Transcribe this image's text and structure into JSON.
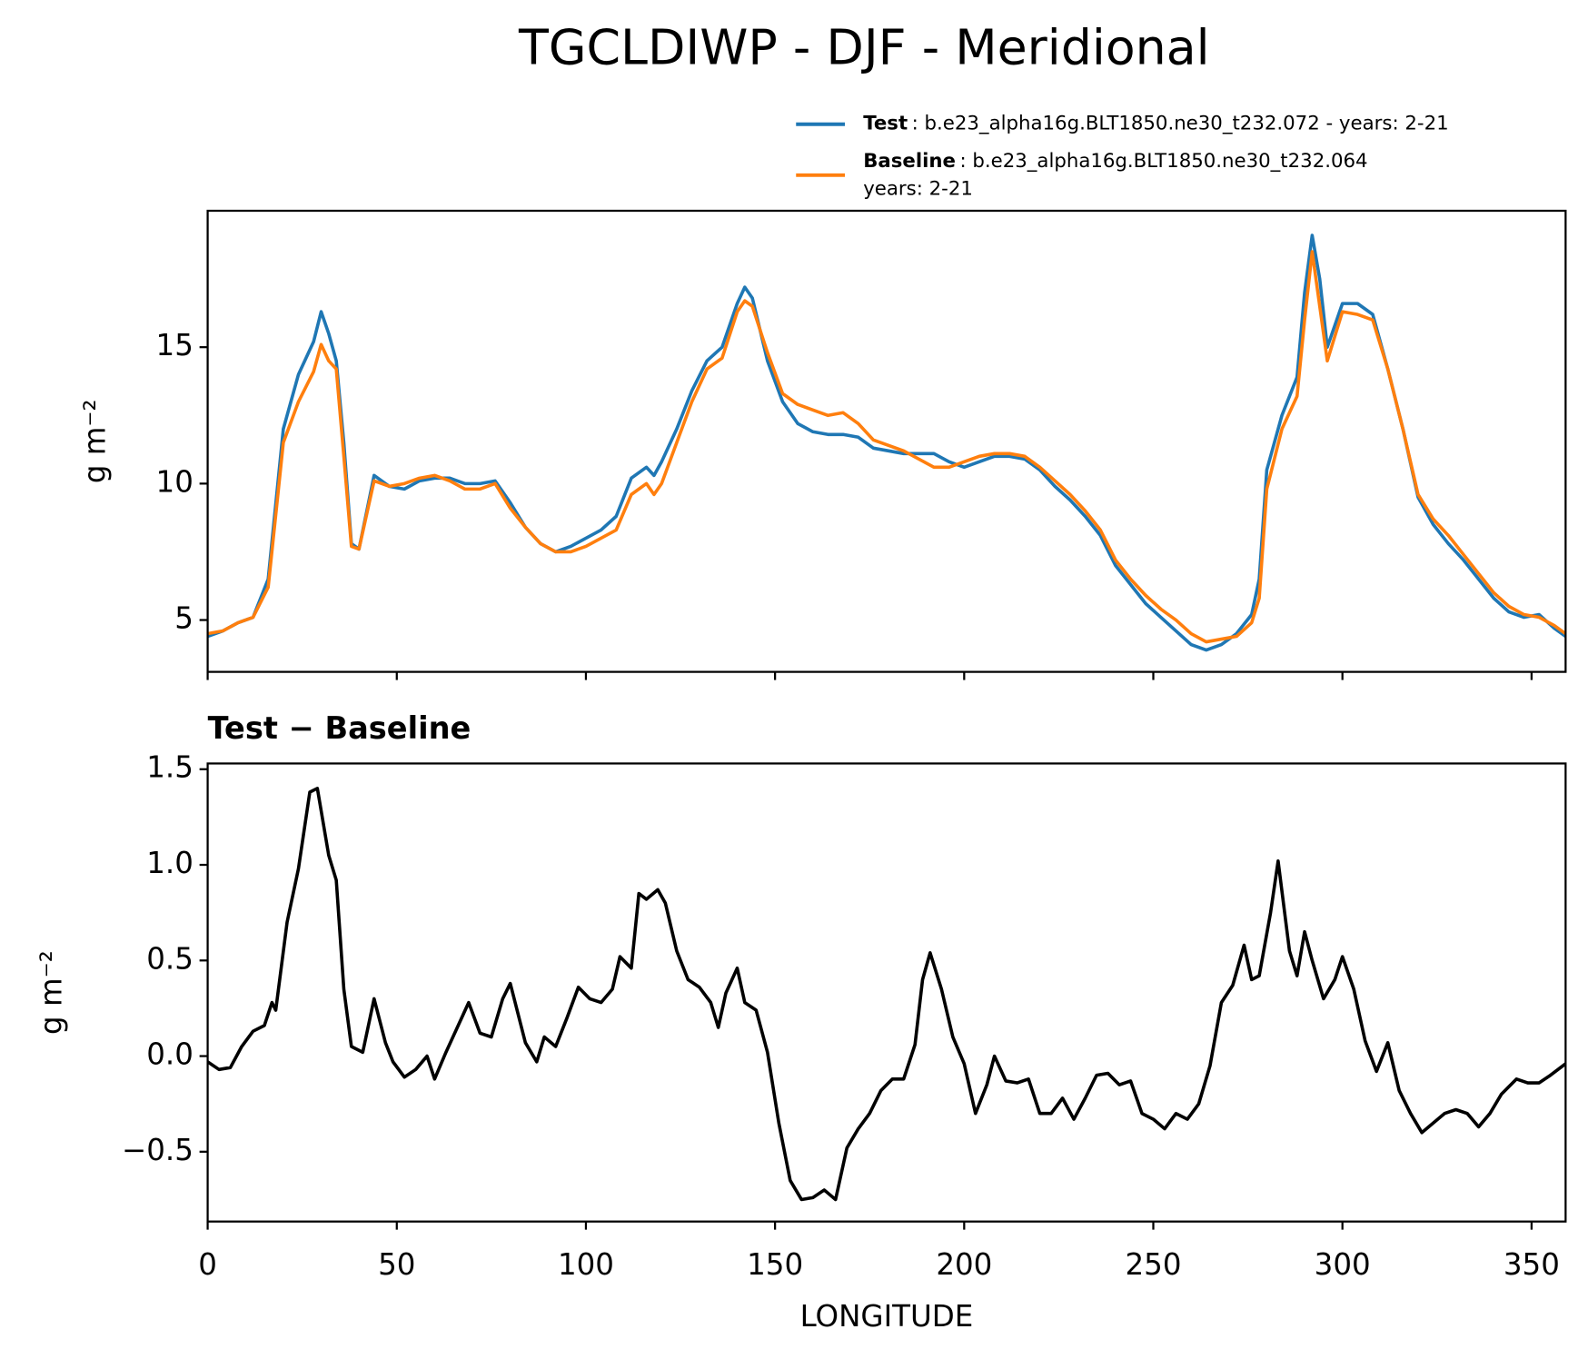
{
  "chart_data": [
    {
      "type": "line",
      "title": "TGCLDIWP - DJF - Meridional",
      "ylabel": "g m⁻²",
      "legend": "upper right",
      "xlim": [
        0,
        359
      ],
      "ylim": [
        3.1,
        20.0
      ],
      "xticks": [
        0,
        50,
        100,
        150,
        200,
        250,
        300,
        350
      ],
      "xtick_labels": false,
      "yticks": [
        5,
        10,
        15
      ],
      "x": [
        0,
        4,
        8,
        12,
        16,
        20,
        24,
        28,
        30,
        32,
        34,
        36,
        38,
        40,
        44,
        48,
        52,
        56,
        60,
        64,
        68,
        72,
        76,
        80,
        84,
        88,
        92,
        96,
        100,
        104,
        108,
        112,
        116,
        118,
        120,
        124,
        128,
        132,
        136,
        140,
        142,
        144,
        148,
        152,
        156,
        160,
        164,
        168,
        172,
        176,
        180,
        184,
        188,
        192,
        196,
        200,
        204,
        208,
        212,
        216,
        220,
        224,
        228,
        232,
        236,
        240,
        244,
        248,
        252,
        256,
        260,
        264,
        268,
        272,
        276,
        278,
        280,
        284,
        288,
        290,
        292,
        294,
        296,
        300,
        304,
        308,
        312,
        316,
        320,
        324,
        328,
        332,
        336,
        340,
        344,
        348,
        352,
        356,
        359
      ],
      "series": [
        {
          "name": "Test",
          "label_lines": [
            ": b.e23_alpha16g.BLT1850.ne30_t232.072 - years: 2-21"
          ],
          "color": "#1f77b4",
          "values": [
            4.4,
            4.6,
            4.9,
            5.1,
            6.5,
            12.0,
            14.0,
            15.2,
            16.3,
            15.5,
            14.5,
            11.5,
            7.8,
            7.6,
            10.3,
            9.9,
            9.8,
            10.1,
            10.2,
            10.2,
            10.0,
            10.0,
            10.1,
            9.3,
            8.4,
            7.8,
            7.5,
            7.7,
            8.0,
            8.3,
            8.8,
            10.2,
            10.6,
            10.3,
            10.8,
            12.0,
            13.4,
            14.5,
            15.0,
            16.6,
            17.2,
            16.8,
            14.5,
            13.0,
            12.2,
            11.9,
            11.8,
            11.8,
            11.7,
            11.3,
            11.2,
            11.1,
            11.1,
            11.1,
            10.8,
            10.6,
            10.8,
            11.0,
            11.0,
            10.9,
            10.5,
            9.9,
            9.4,
            8.8,
            8.1,
            7.0,
            6.3,
            5.6,
            5.1,
            4.6,
            4.1,
            3.9,
            4.1,
            4.5,
            5.2,
            6.5,
            10.5,
            12.5,
            13.9,
            17.0,
            19.1,
            17.5,
            15.0,
            16.6,
            16.6,
            16.2,
            14.2,
            12.0,
            9.5,
            8.5,
            7.8,
            7.2,
            6.5,
            5.8,
            5.3,
            5.1,
            5.2,
            4.7,
            4.4
          ]
        },
        {
          "name": "Baseline",
          "label_lines": [
            ": b.e23_alpha16g.BLT1850.ne30_t232.064",
            "years: 2-21"
          ],
          "color": "#ff7f0e",
          "values": [
            4.5,
            4.6,
            4.9,
            5.1,
            6.2,
            11.5,
            13.0,
            14.1,
            15.1,
            14.5,
            14.2,
            11.0,
            7.7,
            7.6,
            10.1,
            9.9,
            10.0,
            10.2,
            10.3,
            10.1,
            9.8,
            9.8,
            10.0,
            9.1,
            8.4,
            7.8,
            7.5,
            7.5,
            7.7,
            8.0,
            8.3,
            9.6,
            10.0,
            9.6,
            10.0,
            11.5,
            13.0,
            14.2,
            14.6,
            16.3,
            16.7,
            16.5,
            14.8,
            13.3,
            12.9,
            12.7,
            12.5,
            12.6,
            12.2,
            11.6,
            11.4,
            11.2,
            10.9,
            10.6,
            10.6,
            10.8,
            11.0,
            11.1,
            11.1,
            11.0,
            10.6,
            10.1,
            9.6,
            9.0,
            8.3,
            7.2,
            6.5,
            5.9,
            5.4,
            5.0,
            4.5,
            4.2,
            4.3,
            4.4,
            4.9,
            5.8,
            9.8,
            12.0,
            13.2,
            16.0,
            18.5,
            16.5,
            14.5,
            16.3,
            16.2,
            16.0,
            14.2,
            12.0,
            9.6,
            8.7,
            8.1,
            7.4,
            6.7,
            6.0,
            5.5,
            5.2,
            5.1,
            4.8,
            4.5
          ]
        }
      ]
    },
    {
      "type": "line",
      "subtitle": "Test − Baseline",
      "ylabel": "g m⁻²",
      "xlabel": "LONGITUDE",
      "xlim": [
        0,
        359
      ],
      "ylim": [
        -0.865,
        1.53
      ],
      "xticks": [
        0,
        50,
        100,
        150,
        200,
        250,
        300,
        350
      ],
      "yticks": [
        {
          "value": -0.5,
          "label": "−0.5"
        },
        {
          "value": 0,
          "label": "0.0"
        },
        0.5,
        {
          "value": 1,
          "label": "1.0"
        },
        1.5
      ],
      "x": [
        0,
        3,
        6,
        9,
        12,
        15,
        17,
        18,
        21,
        24,
        27,
        29,
        32,
        34,
        36,
        38,
        41,
        44,
        47,
        49,
        52,
        55,
        58,
        60,
        63,
        66,
        69,
        72,
        75,
        78,
        80,
        84,
        87,
        89,
        92,
        95,
        98,
        101,
        104,
        107,
        109,
        112,
        114,
        116,
        119,
        121,
        124,
        127,
        130,
        133,
        135,
        137,
        140,
        142,
        145,
        148,
        151,
        154,
        157,
        160,
        163,
        166,
        169,
        172,
        175,
        178,
        181,
        184,
        187,
        189,
        191,
        194,
        197,
        200,
        203,
        206,
        208,
        211,
        214,
        217,
        220,
        223,
        226,
        229,
        232,
        235,
        238,
        241,
        244,
        247,
        250,
        253,
        256,
        259,
        262,
        265,
        268,
        271,
        274,
        276,
        278,
        281,
        283,
        286,
        288,
        290,
        292,
        295,
        298,
        300,
        303,
        306,
        309,
        312,
        315,
        318,
        321,
        324,
        327,
        330,
        333,
        336,
        339,
        342,
        346,
        349,
        352,
        355,
        359
      ],
      "series": [
        {
          "color": "#000000",
          "values": [
            -0.03,
            -0.07,
            -0.06,
            0.05,
            0.13,
            0.16,
            0.28,
            0.24,
            0.7,
            0.98,
            1.38,
            1.4,
            1.05,
            0.92,
            0.35,
            0.05,
            0.02,
            0.3,
            0.07,
            -0.03,
            -0.11,
            -0.07,
            0.0,
            -0.12,
            0.02,
            0.15,
            0.28,
            0.12,
            0.1,
            0.3,
            0.38,
            0.07,
            -0.03,
            0.1,
            0.05,
            0.2,
            0.36,
            0.3,
            0.28,
            0.35,
            0.52,
            0.46,
            0.85,
            0.82,
            0.87,
            0.8,
            0.55,
            0.4,
            0.36,
            0.28,
            0.15,
            0.33,
            0.46,
            0.28,
            0.24,
            0.02,
            -0.35,
            -0.65,
            -0.75,
            -0.74,
            -0.7,
            -0.75,
            -0.48,
            -0.38,
            -0.3,
            -0.18,
            -0.12,
            -0.12,
            0.06,
            0.4,
            0.54,
            0.35,
            0.1,
            -0.04,
            -0.3,
            -0.15,
            0.0,
            -0.13,
            -0.14,
            -0.12,
            -0.3,
            -0.3,
            -0.22,
            -0.33,
            -0.22,
            -0.1,
            -0.09,
            -0.15,
            -0.13,
            -0.3,
            -0.33,
            -0.38,
            -0.3,
            -0.33,
            -0.25,
            -0.05,
            0.28,
            0.37,
            0.58,
            0.4,
            0.42,
            0.75,
            1.02,
            0.55,
            0.42,
            0.65,
            0.5,
            0.3,
            0.4,
            0.52,
            0.35,
            0.08,
            -0.08,
            0.07,
            -0.18,
            -0.3,
            -0.4,
            -0.35,
            -0.3,
            -0.28,
            -0.3,
            -0.37,
            -0.3,
            -0.2,
            -0.12,
            -0.14,
            -0.14,
            -0.1,
            -0.04
          ]
        }
      ]
    }
  ]
}
